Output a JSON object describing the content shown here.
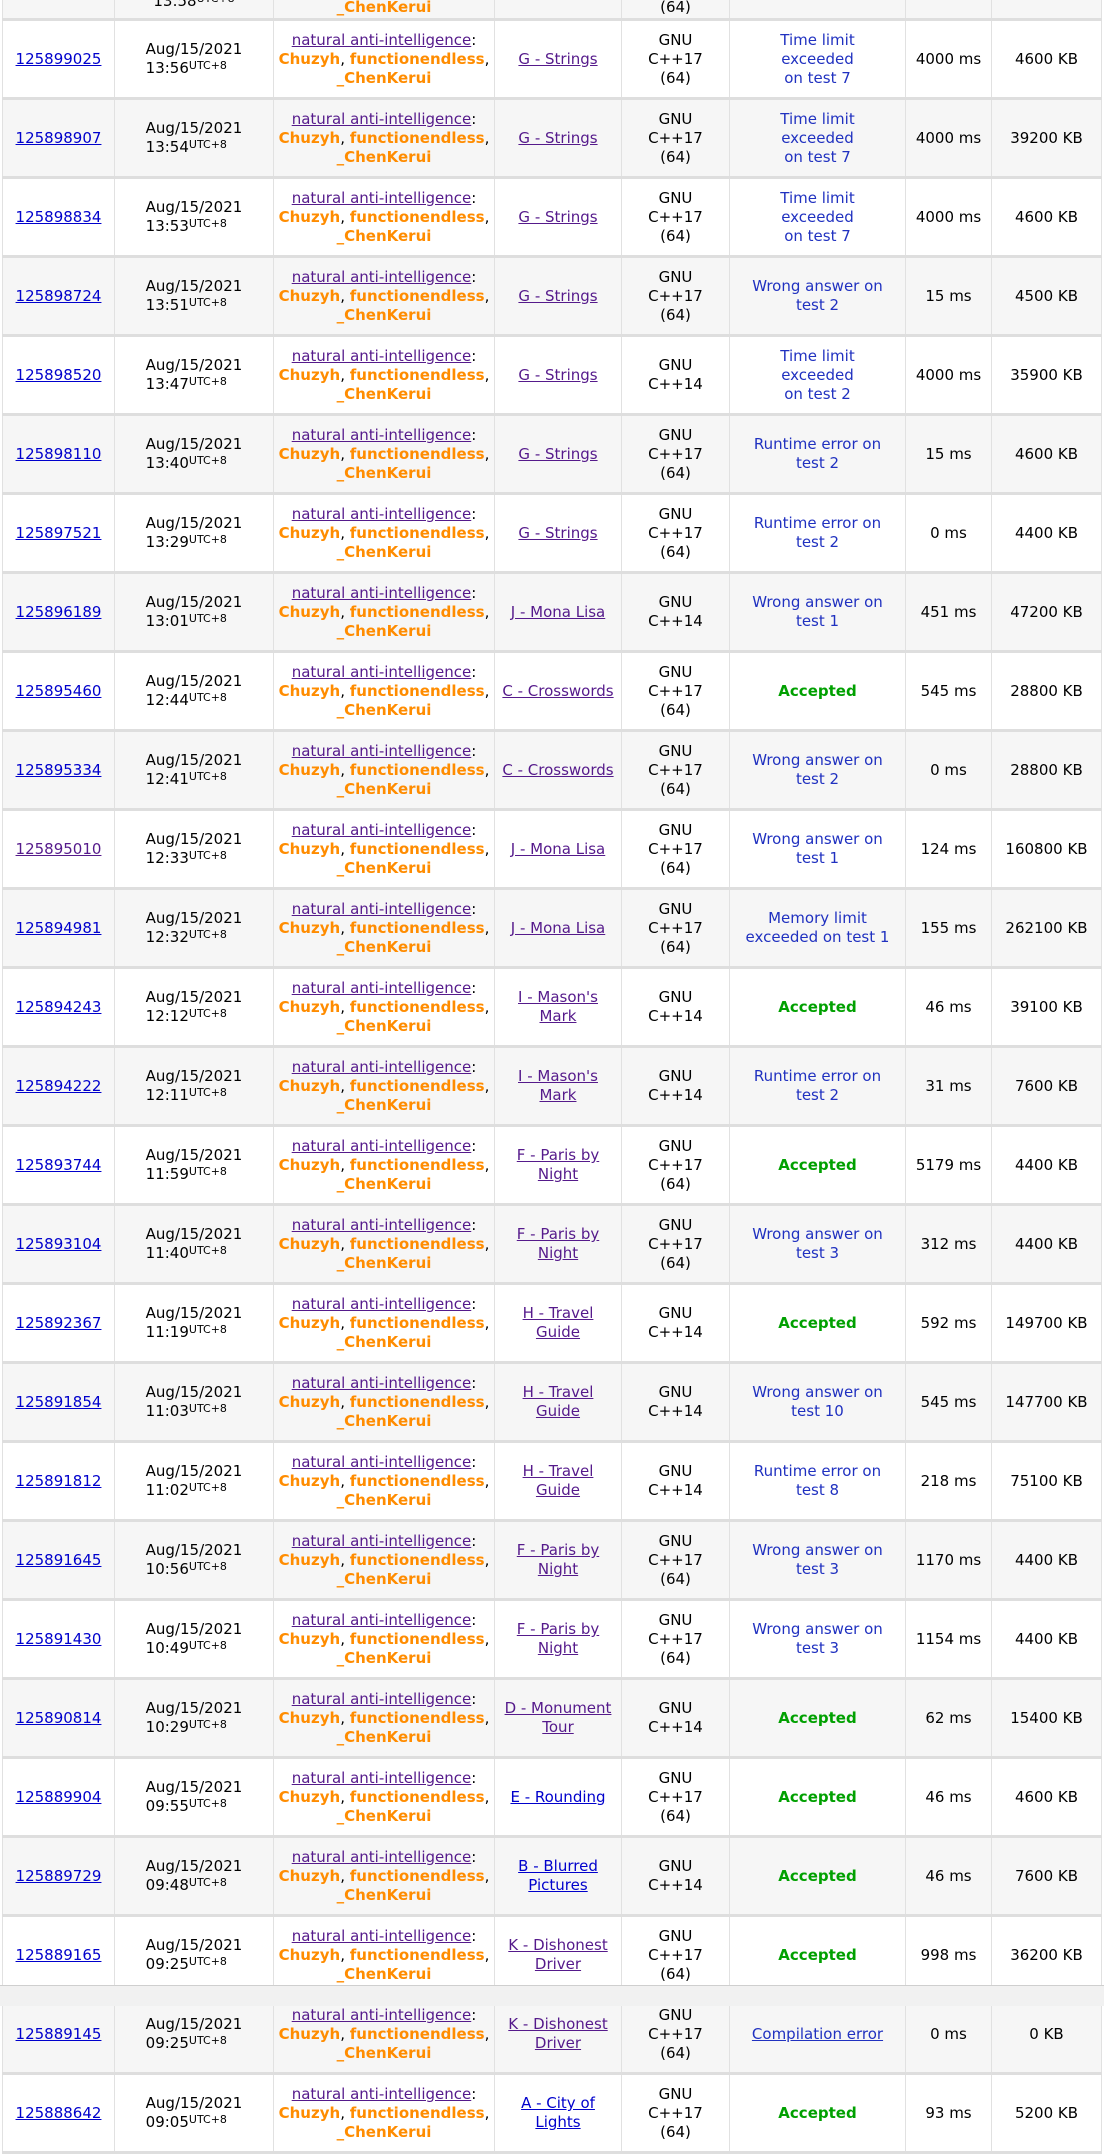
{
  "team": {
    "name": "natural anti-intelligence",
    "colon": ":",
    "members": [
      "Chuzyh",
      "functionendless",
      "_ChenKerui"
    ],
    "member_separator": ","
  },
  "timezone_label": "UTC+8",
  "date_label": "Aug/15/2021",
  "colors": {
    "link_blue": "#0000cc",
    "visited_purple": "#551a8b",
    "member_orange": "#ff8c00",
    "verdict_blue": "#2031c0",
    "accepted_green": "#00a000",
    "row_alt_gray": "#f6f6f6",
    "separator_gray": "#dedede"
  },
  "partial_top_row": {
    "time": "13:58",
    "tz": "UTC+8",
    "who_last_line": "_ChenKerui",
    "lang_last_line": "(64)"
  },
  "rows": [
    {
      "id": "125899025",
      "id_visited": false,
      "date": "Aug/15/2021",
      "time": "13:56",
      "tz": "UTC+8",
      "problem_lines": [
        "G - Strings"
      ],
      "problem_visited": true,
      "lang_lines": [
        "GNU",
        "C++17",
        "(64)"
      ],
      "verdict_lines": [
        "Time limit exceeded",
        "on test 7"
      ],
      "verdict_type": "rej",
      "time_ms": "4000 ms",
      "memory": "4600 KB"
    },
    {
      "id": "125898907",
      "id_visited": false,
      "date": "Aug/15/2021",
      "time": "13:54",
      "tz": "UTC+8",
      "problem_lines": [
        "G - Strings"
      ],
      "problem_visited": true,
      "lang_lines": [
        "GNU",
        "C++17",
        "(64)"
      ],
      "verdict_lines": [
        "Time limit exceeded",
        "on test 7"
      ],
      "verdict_type": "rej",
      "time_ms": "4000 ms",
      "memory": "39200 KB"
    },
    {
      "id": "125898834",
      "id_visited": false,
      "date": "Aug/15/2021",
      "time": "13:53",
      "tz": "UTC+8",
      "problem_lines": [
        "G - Strings"
      ],
      "problem_visited": true,
      "lang_lines": [
        "GNU",
        "C++17",
        "(64)"
      ],
      "verdict_lines": [
        "Time limit exceeded",
        "on test 7"
      ],
      "verdict_type": "rej",
      "time_ms": "4000 ms",
      "memory": "4600 KB"
    },
    {
      "id": "125898724",
      "id_visited": false,
      "date": "Aug/15/2021",
      "time": "13:51",
      "tz": "UTC+8",
      "problem_lines": [
        "G - Strings"
      ],
      "problem_visited": true,
      "lang_lines": [
        "GNU",
        "C++17",
        "(64)"
      ],
      "verdict_lines": [
        "Wrong answer on",
        "test 2"
      ],
      "verdict_type": "rej",
      "time_ms": "15 ms",
      "memory": "4500 KB"
    },
    {
      "id": "125898520",
      "id_visited": false,
      "date": "Aug/15/2021",
      "time": "13:47",
      "tz": "UTC+8",
      "problem_lines": [
        "G - Strings"
      ],
      "problem_visited": true,
      "lang_lines": [
        "GNU",
        "C++14"
      ],
      "verdict_lines": [
        "Time limit exceeded",
        "on test 2"
      ],
      "verdict_type": "rej",
      "time_ms": "4000 ms",
      "memory": "35900 KB"
    },
    {
      "id": "125898110",
      "id_visited": false,
      "date": "Aug/15/2021",
      "time": "13:40",
      "tz": "UTC+8",
      "problem_lines": [
        "G - Strings"
      ],
      "problem_visited": true,
      "lang_lines": [
        "GNU",
        "C++17",
        "(64)"
      ],
      "verdict_lines": [
        "Runtime error on",
        "test 2"
      ],
      "verdict_type": "rej",
      "time_ms": "15 ms",
      "memory": "4600 KB"
    },
    {
      "id": "125897521",
      "id_visited": false,
      "date": "Aug/15/2021",
      "time": "13:29",
      "tz": "UTC+8",
      "problem_lines": [
        "G - Strings"
      ],
      "problem_visited": true,
      "lang_lines": [
        "GNU",
        "C++17",
        "(64)"
      ],
      "verdict_lines": [
        "Runtime error on",
        "test 2"
      ],
      "verdict_type": "rej",
      "time_ms": "0 ms",
      "memory": "4400 KB"
    },
    {
      "id": "125896189",
      "id_visited": false,
      "date": "Aug/15/2021",
      "time": "13:01",
      "tz": "UTC+8",
      "problem_lines": [
        "J - Mona Lisa"
      ],
      "problem_visited": true,
      "lang_lines": [
        "GNU",
        "C++14"
      ],
      "verdict_lines": [
        "Wrong answer on",
        "test 1"
      ],
      "verdict_type": "rej",
      "time_ms": "451 ms",
      "memory": "47200 KB"
    },
    {
      "id": "125895460",
      "id_visited": false,
      "date": "Aug/15/2021",
      "time": "12:44",
      "tz": "UTC+8",
      "problem_lines": [
        "C - Crosswords"
      ],
      "problem_visited": true,
      "lang_lines": [
        "GNU",
        "C++17",
        "(64)"
      ],
      "verdict_lines": [
        "Accepted"
      ],
      "verdict_type": "ok",
      "time_ms": "545 ms",
      "memory": "28800 KB"
    },
    {
      "id": "125895334",
      "id_visited": false,
      "date": "Aug/15/2021",
      "time": "12:41",
      "tz": "UTC+8",
      "problem_lines": [
        "C - Crosswords"
      ],
      "problem_visited": true,
      "lang_lines": [
        "GNU",
        "C++17",
        "(64)"
      ],
      "verdict_lines": [
        "Wrong answer on",
        "test 2"
      ],
      "verdict_type": "rej",
      "time_ms": "0 ms",
      "memory": "28800 KB"
    },
    {
      "id": "125895010",
      "id_visited": true,
      "date": "Aug/15/2021",
      "time": "12:33",
      "tz": "UTC+8",
      "problem_lines": [
        "J - Mona Lisa"
      ],
      "problem_visited": true,
      "lang_lines": [
        "GNU",
        "C++17",
        "(64)"
      ],
      "verdict_lines": [
        "Wrong answer on",
        "test 1"
      ],
      "verdict_type": "rej",
      "time_ms": "124 ms",
      "memory": "160800 KB"
    },
    {
      "id": "125894981",
      "id_visited": false,
      "date": "Aug/15/2021",
      "time": "12:32",
      "tz": "UTC+8",
      "problem_lines": [
        "J - Mona Lisa"
      ],
      "problem_visited": true,
      "lang_lines": [
        "GNU",
        "C++17",
        "(64)"
      ],
      "verdict_lines": [
        "Memory limit",
        "exceeded on test 1"
      ],
      "verdict_type": "rej",
      "time_ms": "155 ms",
      "memory": "262100 KB"
    },
    {
      "id": "125894243",
      "id_visited": false,
      "date": "Aug/15/2021",
      "time": "12:12",
      "tz": "UTC+8",
      "problem_lines": [
        "I - Mason's",
        "Mark"
      ],
      "problem_visited": true,
      "lang_lines": [
        "GNU",
        "C++14"
      ],
      "verdict_lines": [
        "Accepted"
      ],
      "verdict_type": "ok",
      "time_ms": "46 ms",
      "memory": "39100 KB"
    },
    {
      "id": "125894222",
      "id_visited": false,
      "date": "Aug/15/2021",
      "time": "12:11",
      "tz": "UTC+8",
      "problem_lines": [
        "I - Mason's",
        "Mark"
      ],
      "problem_visited": true,
      "lang_lines": [
        "GNU",
        "C++14"
      ],
      "verdict_lines": [
        "Runtime error on",
        "test 2"
      ],
      "verdict_type": "rej",
      "time_ms": "31 ms",
      "memory": "7600 KB"
    },
    {
      "id": "125893744",
      "id_visited": false,
      "date": "Aug/15/2021",
      "time": "11:59",
      "tz": "UTC+8",
      "problem_lines": [
        "F - Paris by",
        "Night"
      ],
      "problem_visited": true,
      "lang_lines": [
        "GNU",
        "C++17",
        "(64)"
      ],
      "verdict_lines": [
        "Accepted"
      ],
      "verdict_type": "ok",
      "time_ms": "5179 ms",
      "memory": "4400 KB"
    },
    {
      "id": "125893104",
      "id_visited": false,
      "date": "Aug/15/2021",
      "time": "11:40",
      "tz": "UTC+8",
      "problem_lines": [
        "F - Paris by",
        "Night"
      ],
      "problem_visited": true,
      "lang_lines": [
        "GNU",
        "C++17",
        "(64)"
      ],
      "verdict_lines": [
        "Wrong answer on",
        "test 3"
      ],
      "verdict_type": "rej",
      "time_ms": "312 ms",
      "memory": "4400 KB"
    },
    {
      "id": "125892367",
      "id_visited": false,
      "date": "Aug/15/2021",
      "time": "11:19",
      "tz": "UTC+8",
      "problem_lines": [
        "H - Travel",
        "Guide"
      ],
      "problem_visited": true,
      "lang_lines": [
        "GNU",
        "C++14"
      ],
      "verdict_lines": [
        "Accepted"
      ],
      "verdict_type": "ok",
      "time_ms": "592 ms",
      "memory": "149700 KB"
    },
    {
      "id": "125891854",
      "id_visited": false,
      "date": "Aug/15/2021",
      "time": "11:03",
      "tz": "UTC+8",
      "problem_lines": [
        "H - Travel",
        "Guide"
      ],
      "problem_visited": true,
      "lang_lines": [
        "GNU",
        "C++14"
      ],
      "verdict_lines": [
        "Wrong answer on",
        "test 10"
      ],
      "verdict_type": "rej",
      "time_ms": "545 ms",
      "memory": "147700 KB"
    },
    {
      "id": "125891812",
      "id_visited": false,
      "date": "Aug/15/2021",
      "time": "11:02",
      "tz": "UTC+8",
      "problem_lines": [
        "H - Travel",
        "Guide"
      ],
      "problem_visited": true,
      "lang_lines": [
        "GNU",
        "C++14"
      ],
      "verdict_lines": [
        "Runtime error on",
        "test 8"
      ],
      "verdict_type": "rej",
      "time_ms": "218 ms",
      "memory": "75100 KB"
    },
    {
      "id": "125891645",
      "id_visited": false,
      "date": "Aug/15/2021",
      "time": "10:56",
      "tz": "UTC+8",
      "problem_lines": [
        "F - Paris by",
        "Night"
      ],
      "problem_visited": true,
      "lang_lines": [
        "GNU",
        "C++17",
        "(64)"
      ],
      "verdict_lines": [
        "Wrong answer on",
        "test 3"
      ],
      "verdict_type": "rej",
      "time_ms": "1170 ms",
      "memory": "4400 KB"
    },
    {
      "id": "125891430",
      "id_visited": false,
      "date": "Aug/15/2021",
      "time": "10:49",
      "tz": "UTC+8",
      "problem_lines": [
        "F - Paris by",
        "Night"
      ],
      "problem_visited": true,
      "lang_lines": [
        "GNU",
        "C++17",
        "(64)"
      ],
      "verdict_lines": [
        "Wrong answer on",
        "test 3"
      ],
      "verdict_type": "rej",
      "time_ms": "1154 ms",
      "memory": "4400 KB"
    },
    {
      "id": "125890814",
      "id_visited": false,
      "date": "Aug/15/2021",
      "time": "10:29",
      "tz": "UTC+8",
      "problem_lines": [
        "D - Monument",
        "Tour"
      ],
      "problem_visited": true,
      "lang_lines": [
        "GNU",
        "C++14"
      ],
      "verdict_lines": [
        "Accepted"
      ],
      "verdict_type": "ok",
      "time_ms": "62 ms",
      "memory": "15400 KB"
    },
    {
      "id": "125889904",
      "id_visited": false,
      "date": "Aug/15/2021",
      "time": "09:55",
      "tz": "UTC+8",
      "problem_lines": [
        "E - Rounding"
      ],
      "problem_visited": false,
      "lang_lines": [
        "GNU",
        "C++17",
        "(64)"
      ],
      "verdict_lines": [
        "Accepted"
      ],
      "verdict_type": "ok",
      "time_ms": "46 ms",
      "memory": "4600 KB"
    },
    {
      "id": "125889729",
      "id_visited": false,
      "date": "Aug/15/2021",
      "time": "09:48",
      "tz": "UTC+8",
      "problem_lines": [
        "B - Blurred",
        "Pictures"
      ],
      "problem_visited": false,
      "lang_lines": [
        "GNU",
        "C++14"
      ],
      "verdict_lines": [
        "Accepted"
      ],
      "verdict_type": "ok",
      "time_ms": "46 ms",
      "memory": "7600 KB"
    },
    {
      "id": "125889165",
      "id_visited": false,
      "date": "Aug/15/2021",
      "time": "09:25",
      "tz": "UTC+8",
      "problem_lines": [
        "K - Dishonest",
        "Driver"
      ],
      "problem_visited": true,
      "lang_lines": [
        "GNU",
        "C++17",
        "(64)"
      ],
      "verdict_lines": [
        "Accepted"
      ],
      "verdict_type": "ok",
      "time_ms": "998 ms",
      "memory": "36200 KB"
    },
    {
      "id": "125889145",
      "id_visited": false,
      "date": "Aug/15/2021",
      "time": "09:25",
      "tz": "UTC+8",
      "problem_lines": [
        "K - Dishonest",
        "Driver"
      ],
      "problem_visited": true,
      "lang_lines": [
        "GNU",
        "C++17",
        "(64)"
      ],
      "verdict_lines": [
        "Compilation error"
      ],
      "verdict_type": "ce",
      "time_ms": "0 ms",
      "memory": "0 KB"
    },
    {
      "id": "125888642",
      "id_visited": false,
      "date": "Aug/15/2021",
      "time": "09:05",
      "tz": "UTC+8",
      "problem_lines": [
        "A - City of",
        "Lights"
      ],
      "problem_visited": false,
      "lang_lines": [
        "GNU",
        "C++17",
        "(64)"
      ],
      "verdict_lines": [
        "Accepted"
      ],
      "verdict_type": "ok",
      "time_ms": "93 ms",
      "memory": "5200 KB"
    }
  ]
}
